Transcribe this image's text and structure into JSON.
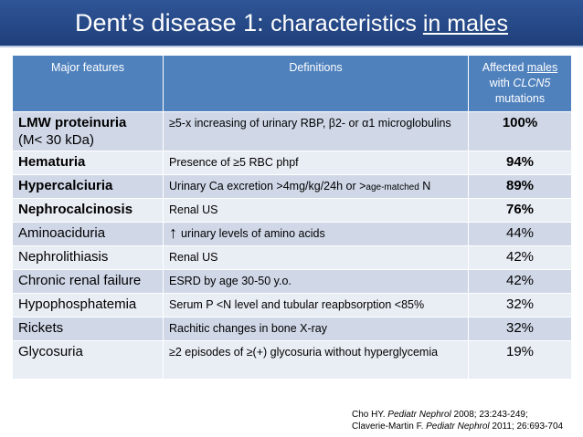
{
  "title": {
    "part1": "Dent’s disease 1: ",
    "part2": "characteristics ",
    "part3": "in males"
  },
  "headers": {
    "features": "Major features",
    "definitions": "Definitions",
    "affected_a": "Affected ",
    "affected_b": "males",
    "affected_c": "with ",
    "affected_d": "CLCN5",
    "affected_e": "mutations"
  },
  "rows": [
    {
      "feature": "LMW proteinuria",
      "feature2": "(M< 30 kDa)",
      "definition": "≥5-x increasing of urinary RBP, β2-  or α1 microglobulins",
      "percent": "100%"
    },
    {
      "feature": "Hematuria",
      "definition": "Presence of ≥5 RBC phpf",
      "percent": "94%"
    },
    {
      "feature": "Hypercalciuria",
      "definition": "Urinary Ca excretion >4mg/kg/24h or >",
      "def_sub": "age-matched",
      "def_tail": " N",
      "percent": "89%"
    },
    {
      "feature": "Nephrocalcinosis",
      "definition": "Renal US",
      "percent": "76%"
    },
    {
      "feature": "Aminoaciduria",
      "arrow": "↑",
      "definition": "urinary levels of amino acids",
      "percent": "44%"
    },
    {
      "feature": "Nephrolithiasis",
      "definition": "Renal US",
      "percent": "42%"
    },
    {
      "feature": "Chronic renal failure",
      "definition": "ESRD by age 30-50 y.o.",
      "percent": "42%"
    },
    {
      "feature": "Hypophosphatemia",
      "definition": "Serum P <N level and tubular reapbsorption <85%",
      "percent": "32%"
    },
    {
      "feature": "Rickets",
      "definition": "Rachitic changes in bone X-ray",
      "percent": "32%"
    },
    {
      "feature": "Glycosuria",
      "definition": "≥2 episodes of ≥(+) glycosuria without hyperglycemia",
      "percent": "19%"
    }
  ],
  "citation": {
    "line1_a": "Cho HY. ",
    "line1_j": "Pediatr  Nephrol",
    "line1_b": " 2008; 23:243-249;",
    "line2_a": "Claverie-Martin F. ",
    "line2_j": "Pediatr  Nephrol",
    "line2_b": " 2011; 26:693-704"
  }
}
